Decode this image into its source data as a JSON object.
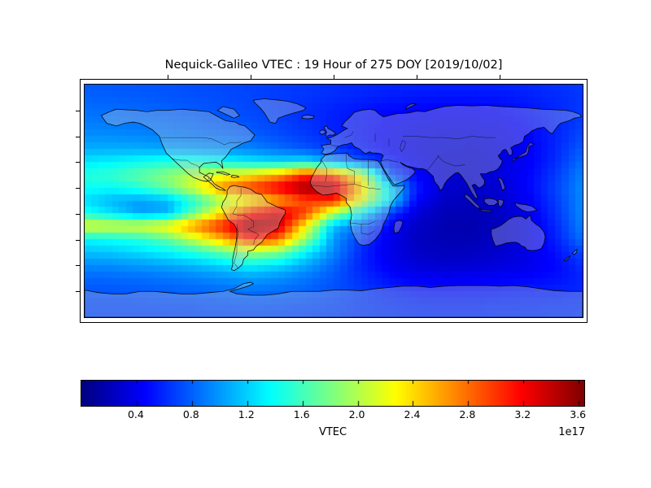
{
  "title": "Nequick-Galileo VTEC : 19 Hour of 275 DOY [2019/10/02]",
  "colorbar": {
    "label": "VTEC",
    "offset_label": "1e17",
    "colormap": "jet",
    "vmin": 0.0,
    "vmax": 3.64,
    "ticks": [
      0.4,
      0.8,
      1.2,
      1.6,
      2.0,
      2.4,
      2.8,
      3.2,
      3.6
    ],
    "tick_labels": [
      "0.4",
      "0.8",
      "1.2",
      "1.6",
      "2.0",
      "2.4",
      "2.8",
      "3.2",
      "3.6"
    ]
  },
  "chart_data": {
    "type": "heatmap",
    "title": "Nequick-Galileo VTEC : 19 Hour of 275 DOY [2019/10/02]",
    "colormap": "jet",
    "value_scale": "1e17",
    "vmin": 0.0,
    "vmax": 3.64,
    "colorbar_label": "VTEC",
    "lon_range": [
      -180,
      180
    ],
    "lat_range": [
      -90,
      90
    ],
    "lons": [
      -180,
      -160,
      -140,
      -120,
      -100,
      -80,
      -60,
      -40,
      -20,
      0,
      20,
      40,
      60,
      80,
      100,
      120,
      140,
      160,
      180
    ],
    "lats": [
      90,
      80,
      70,
      60,
      50,
      40,
      30,
      20,
      10,
      0,
      -10,
      -20,
      -30,
      -40,
      -50,
      -60,
      -70,
      -80,
      -90
    ],
    "values": [
      [
        0.78,
        0.77,
        0.76,
        0.75,
        0.73,
        0.71,
        0.69,
        0.67,
        0.65,
        0.63,
        0.61,
        0.59,
        0.58,
        0.57,
        0.57,
        0.58,
        0.6,
        0.63,
        0.66
      ],
      [
        0.8,
        0.79,
        0.78,
        0.76,
        0.74,
        0.72,
        0.7,
        0.67,
        0.64,
        0.61,
        0.58,
        0.55,
        0.53,
        0.52,
        0.52,
        0.53,
        0.56,
        0.6,
        0.65
      ],
      [
        0.85,
        0.84,
        0.82,
        0.8,
        0.77,
        0.74,
        0.71,
        0.67,
        0.62,
        0.57,
        0.52,
        0.48,
        0.46,
        0.45,
        0.45,
        0.47,
        0.52,
        0.58,
        0.66
      ],
      [
        0.9,
        0.89,
        0.87,
        0.85,
        0.82,
        0.78,
        0.74,
        0.69,
        0.63,
        0.56,
        0.5,
        0.45,
        0.41,
        0.39,
        0.39,
        0.42,
        0.48,
        0.57,
        0.68
      ],
      [
        0.97,
        0.96,
        0.94,
        0.91,
        0.88,
        0.85,
        0.8,
        0.73,
        0.66,
        0.58,
        0.5,
        0.43,
        0.38,
        0.35,
        0.35,
        0.38,
        0.45,
        0.57,
        0.72
      ],
      [
        1.08,
        1.08,
        1.07,
        1.05,
        1.02,
        0.98,
        0.93,
        0.85,
        0.76,
        0.66,
        0.54,
        0.44,
        0.36,
        0.32,
        0.31,
        0.35,
        0.43,
        0.58,
        0.78
      ],
      [
        1.28,
        1.33,
        1.4,
        1.46,
        1.48,
        1.4,
        1.3,
        1.24,
        1.28,
        1.0,
        0.76,
        0.55,
        0.4,
        0.3,
        0.28,
        0.33,
        0.42,
        0.6,
        0.85
      ],
      [
        1.48,
        1.55,
        1.7,
        1.85,
        2.05,
        2.2,
        2.35,
        2.6,
        3.05,
        2.9,
        2.15,
        0.8,
        0.45,
        0.3,
        0.27,
        0.33,
        0.45,
        0.65,
        0.92
      ],
      [
        1.4,
        1.38,
        1.5,
        1.75,
        2.15,
        2.7,
        3.0,
        3.25,
        3.55,
        3.45,
        2.45,
        1.3,
        0.55,
        0.28,
        0.25,
        0.3,
        0.45,
        0.68,
        0.95
      ],
      [
        1.25,
        1.1,
        1.02,
        1.1,
        1.5,
        1.95,
        2.25,
        2.55,
        2.95,
        3.05,
        2.2,
        1.3,
        0.45,
        0.24,
        0.22,
        0.28,
        0.42,
        0.65,
        0.95
      ],
      [
        1.45,
        1.25,
        1.02,
        1.08,
        1.75,
        2.4,
        3.05,
        3.35,
        2.95,
        2.0,
        1.35,
        0.7,
        0.32,
        0.2,
        0.19,
        0.24,
        0.38,
        0.62,
        0.95
      ],
      [
        2.2,
        2.15,
        2.15,
        2.3,
        2.7,
        3.1,
        3.6,
        3.4,
        2.3,
        1.15,
        0.85,
        0.45,
        0.25,
        0.18,
        0.17,
        0.23,
        0.36,
        0.58,
        0.92
      ],
      [
        1.35,
        1.4,
        1.5,
        1.7,
        2.1,
        2.55,
        3.05,
        2.8,
        1.9,
        1.0,
        0.65,
        0.4,
        0.24,
        0.19,
        0.19,
        0.25,
        0.36,
        0.55,
        0.85
      ],
      [
        1.15,
        1.18,
        1.25,
        1.35,
        1.5,
        1.72,
        1.95,
        1.85,
        1.35,
        0.95,
        0.6,
        0.38,
        0.26,
        0.22,
        0.23,
        0.28,
        0.36,
        0.5,
        0.72
      ],
      [
        0.95,
        0.96,
        1.0,
        1.05,
        1.12,
        1.22,
        1.35,
        1.25,
        1.05,
        0.82,
        0.58,
        0.42,
        0.32,
        0.29,
        0.3,
        0.33,
        0.38,
        0.46,
        0.62
      ],
      [
        0.82,
        0.83,
        0.85,
        0.88,
        0.92,
        0.97,
        1.02,
        0.97,
        0.88,
        0.76,
        0.62,
        0.5,
        0.42,
        0.4,
        0.41,
        0.43,
        0.46,
        0.5,
        0.58
      ],
      [
        0.76,
        0.76,
        0.77,
        0.79,
        0.81,
        0.84,
        0.86,
        0.84,
        0.8,
        0.74,
        0.66,
        0.58,
        0.53,
        0.51,
        0.52,
        0.53,
        0.55,
        0.56,
        0.6
      ],
      [
        0.72,
        0.72,
        0.72,
        0.73,
        0.74,
        0.75,
        0.76,
        0.75,
        0.73,
        0.7,
        0.66,
        0.62,
        0.6,
        0.59,
        0.59,
        0.6,
        0.61,
        0.62,
        0.64
      ],
      [
        0.7,
        0.7,
        0.7,
        0.7,
        0.71,
        0.71,
        0.72,
        0.71,
        0.7,
        0.68,
        0.66,
        0.64,
        0.62,
        0.62,
        0.62,
        0.63,
        0.63,
        0.64,
        0.65
      ]
    ]
  }
}
